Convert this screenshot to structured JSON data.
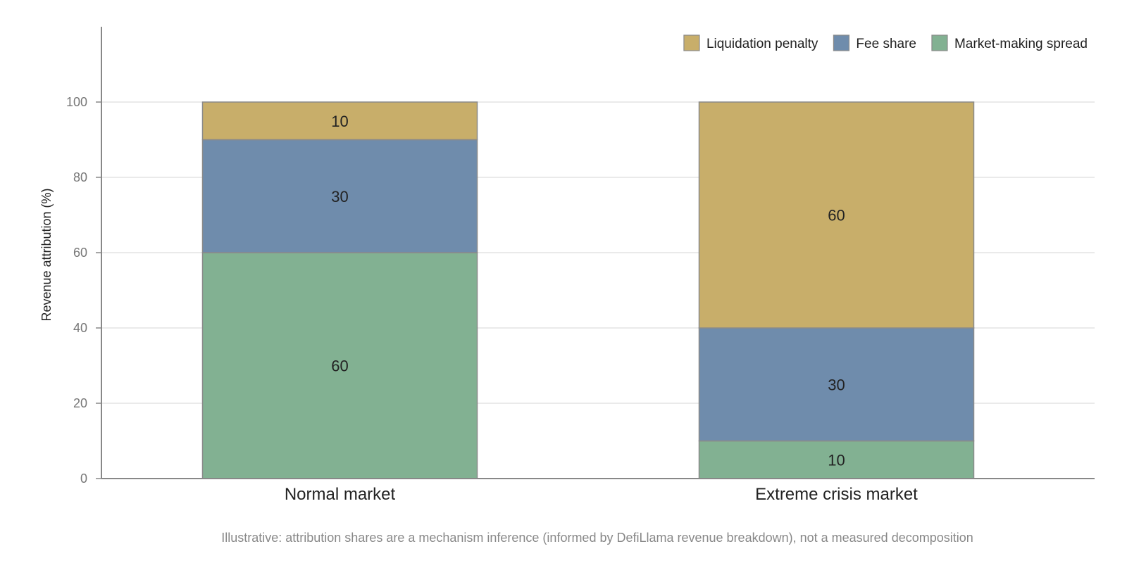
{
  "chart_data": {
    "type": "bar",
    "stacked": true,
    "categories": [
      "Normal market",
      "Extreme crisis market"
    ],
    "series": [
      {
        "name": "Market-making spread",
        "values": [
          60,
          10
        ],
        "color": "#82b192"
      },
      {
        "name": "Fee share",
        "values": [
          30,
          30
        ],
        "color": "#6f8cac"
      },
      {
        "name": "Liquidation penalty",
        "values": [
          10,
          60
        ],
        "color": "#c8ae6a"
      }
    ],
    "legend_order": [
      "Liquidation penalty",
      "Fee share",
      "Market-making spread"
    ],
    "legend_placement": "top-right",
    "title": "",
    "xlabel": "",
    "ylabel": "Revenue attribution (%)",
    "ylim": [
      0,
      120
    ],
    "yticks": [
      0,
      20,
      40,
      60,
      80,
      100
    ],
    "grid": true,
    "footnote": "Illustrative: attribution shares are a mechanism inference (informed by DefiLlama revenue breakdown), not a measured decomposition"
  }
}
